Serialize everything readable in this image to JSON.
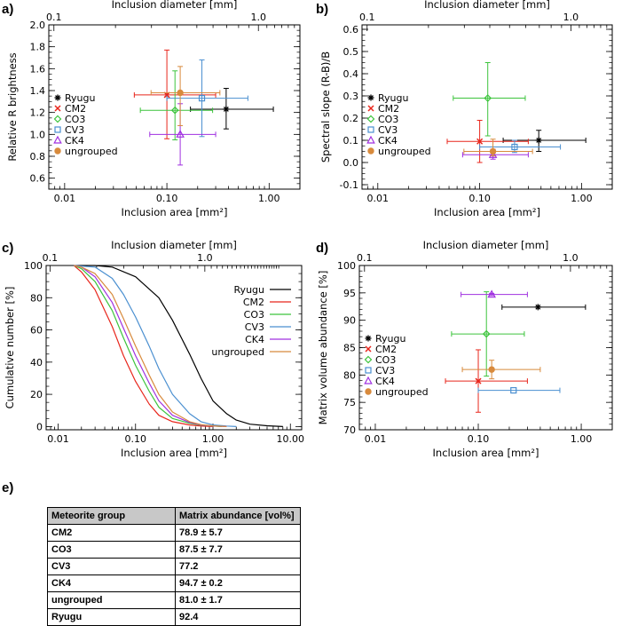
{
  "panel_labels": [
    "a)",
    "b)",
    "c)",
    "d)",
    "e)"
  ],
  "colors": {
    "Ryugu": "#000000",
    "CM2": "#e8261c",
    "CO3": "#3cc43c",
    "CV3": "#4a8fd0",
    "CK4": "#a030e0",
    "ungrouped": "#d88a3c"
  },
  "chart_data": [
    {
      "id": "a",
      "type": "scatter",
      "xscale": "log",
      "xlim": [
        0.007,
        2.0
      ],
      "ylim": [
        0.5,
        2.0
      ],
      "xlabel": "Inclusion area [mm²]",
      "ylabel": "Relative R brightness",
      "top_axis_label": "Inclusion diameter [mm]",
      "top_ticks": [
        "0.1",
        "1.0"
      ],
      "xticks": [
        "0.01",
        "0.10",
        "1.00"
      ],
      "yticks": [
        "0.6",
        "0.8",
        "1.0",
        "1.2",
        "1.4",
        "1.6",
        "1.8",
        "2.0"
      ],
      "legend": [
        "Ryugu",
        "CM2",
        "CO3",
        "CV3",
        "CK4",
        "ungrouped"
      ],
      "points": [
        {
          "name": "Ryugu",
          "marker": "star",
          "x": 0.38,
          "xerr": [
            0.17,
            1.1
          ],
          "y": 1.23,
          "yerr": [
            1.05,
            1.42
          ]
        },
        {
          "name": "CM2",
          "marker": "x",
          "x": 0.1,
          "xerr": [
            0.048,
            0.3
          ],
          "y": 1.36,
          "yerr": [
            0.96,
            1.77
          ]
        },
        {
          "name": "CO3",
          "marker": "diamond",
          "x": 0.12,
          "xerr": [
            0.055,
            0.28
          ],
          "y": 1.22,
          "yerr": [
            0.95,
            1.58
          ]
        },
        {
          "name": "CV3",
          "marker": "square",
          "x": 0.22,
          "xerr": [
            0.1,
            0.62
          ],
          "y": 1.33,
          "yerr": [
            0.98,
            1.68
          ]
        },
        {
          "name": "CK4",
          "marker": "triangle",
          "x": 0.135,
          "xerr": [
            0.068,
            0.3
          ],
          "y": 1.0,
          "yerr": [
            0.72,
            1.28
          ]
        },
        {
          "name": "ungrouped",
          "marker": "circle",
          "x": 0.135,
          "xerr": [
            0.07,
            0.33
          ],
          "y": 1.38,
          "yerr": [
            1.08,
            1.62
          ]
        }
      ]
    },
    {
      "id": "b",
      "type": "scatter",
      "xscale": "log",
      "xlim": [
        0.007,
        2.0
      ],
      "ylim": [
        -0.12,
        0.62
      ],
      "xlabel": "Inclusion area [mm²]",
      "ylabel": "Spectral slope (R-B)/B",
      "top_axis_label": "Inclusion diameter [mm]",
      "top_ticks": [
        "0.1",
        "1.0"
      ],
      "xticks": [
        "0.01",
        "0.10",
        "1.00"
      ],
      "yticks": [
        "-0.1",
        "0.0",
        "0.1",
        "0.2",
        "0.3",
        "0.4",
        "0.5",
        "0.6"
      ],
      "legend": [
        "Ryugu",
        "CM2",
        "CO3",
        "CV3",
        "CK4",
        "ungrouped"
      ],
      "points": [
        {
          "name": "Ryugu",
          "marker": "star",
          "x": 0.38,
          "xerr": [
            0.17,
            1.1
          ],
          "y": 0.1,
          "yerr": [
            0.05,
            0.145
          ]
        },
        {
          "name": "CM2",
          "marker": "x",
          "x": 0.1,
          "xerr": [
            0.048,
            0.3
          ],
          "y": 0.095,
          "yerr": [
            0.0,
            0.19
          ]
        },
        {
          "name": "CO3",
          "marker": "diamond",
          "x": 0.12,
          "xerr": [
            0.055,
            0.28
          ],
          "y": 0.29,
          "yerr": [
            0.12,
            0.45
          ]
        },
        {
          "name": "CV3",
          "marker": "square",
          "x": 0.22,
          "xerr": [
            0.1,
            0.62
          ],
          "y": 0.07,
          "yerr": [
            0.045,
            0.1
          ]
        },
        {
          "name": "CK4",
          "marker": "triangle",
          "x": 0.135,
          "xerr": [
            0.068,
            0.3
          ],
          "y": 0.035,
          "yerr": [
            0.015,
            0.06
          ]
        },
        {
          "name": "ungrouped",
          "marker": "circle",
          "x": 0.135,
          "xerr": [
            0.07,
            0.33
          ],
          "y": 0.05,
          "yerr": [
            0.03,
            0.105
          ]
        }
      ]
    },
    {
      "id": "c",
      "type": "line",
      "xscale": "log",
      "xlim": [
        0.007,
        14.0
      ],
      "ylim": [
        -2,
        100
      ],
      "xlabel": "Inclusion area [mm²]",
      "ylabel": "Cumulative number [%]",
      "top_axis_label": "Inclusion diameter [mm]",
      "top_ticks": [
        "0.1",
        "1.0"
      ],
      "xticks": [
        "0.01",
        "0.10",
        "1.00",
        "10.00"
      ],
      "yticks": [
        "0",
        "20",
        "40",
        "60",
        "80",
        "100"
      ],
      "legend": [
        "Ryugu",
        "CM2",
        "CO3",
        "CV3",
        "CK4",
        "ungrouped"
      ],
      "series": [
        {
          "name": "Ryugu",
          "x": [
            0.016,
            0.03,
            0.05,
            0.1,
            0.2,
            0.3,
            0.5,
            0.7,
            1.0,
            1.5,
            2.0,
            3.0,
            5.0,
            8.0
          ],
          "values": [
            100,
            100,
            99,
            93,
            80,
            66,
            45,
            30,
            16,
            8,
            4,
            1.5,
            0.5,
            0
          ]
        },
        {
          "name": "CM2",
          "x": [
            0.016,
            0.02,
            0.03,
            0.05,
            0.07,
            0.1,
            0.15,
            0.2,
            0.3,
            0.5,
            0.7,
            1.0
          ],
          "values": [
            100,
            96,
            85,
            62,
            44,
            28,
            14,
            7,
            3,
            1,
            0.3,
            0
          ]
        },
        {
          "name": "CO3",
          "x": [
            0.016,
            0.02,
            0.03,
            0.05,
            0.07,
            0.1,
            0.15,
            0.2,
            0.3,
            0.5,
            0.7,
            1.0,
            1.3
          ],
          "values": [
            100,
            98,
            90,
            72,
            55,
            38,
            22,
            12,
            5,
            2,
            0.8,
            0.3,
            0
          ]
        },
        {
          "name": "CV3",
          "x": [
            0.016,
            0.03,
            0.05,
            0.07,
            0.1,
            0.15,
            0.2,
            0.3,
            0.5,
            0.7,
            1.0,
            1.5,
            2.0
          ],
          "values": [
            100,
            99,
            92,
            82,
            68,
            50,
            36,
            20,
            8,
            3,
            1,
            0.3,
            0
          ]
        },
        {
          "name": "CK4",
          "x": [
            0.016,
            0.02,
            0.03,
            0.05,
            0.07,
            0.1,
            0.15,
            0.2,
            0.3,
            0.5,
            0.7,
            1.0,
            1.5
          ],
          "values": [
            100,
            99,
            93,
            77,
            61,
            44,
            27,
            16,
            7,
            2.5,
            1,
            0.3,
            0
          ]
        },
        {
          "name": "ungrouped",
          "x": [
            0.016,
            0.02,
            0.03,
            0.05,
            0.07,
            0.1,
            0.15,
            0.2,
            0.3,
            0.5,
            0.7,
            1.0,
            1.5
          ],
          "values": [
            100,
            99,
            95,
            82,
            67,
            50,
            32,
            20,
            9,
            3,
            1.2,
            0.4,
            0
          ]
        }
      ]
    },
    {
      "id": "d",
      "type": "scatter",
      "xscale": "log",
      "xlim": [
        0.007,
        2.0
      ],
      "ylim": [
        70,
        100
      ],
      "xlabel": "Inclusion area [mm²]",
      "ylabel": "Matrix volume abundance [%]",
      "top_axis_label": "Inclusion diameter [mm]",
      "top_ticks": [
        "0.1",
        "1.0"
      ],
      "xticks": [
        "0.01",
        "0.10",
        "1.00"
      ],
      "yticks": [
        "70",
        "75",
        "80",
        "85",
        "90",
        "95",
        "100"
      ],
      "legend": [
        "Ryugu",
        "CM2",
        "CO3",
        "CV3",
        "CK4",
        "ungrouped"
      ],
      "points": [
        {
          "name": "Ryugu",
          "marker": "star",
          "x": 0.38,
          "xerr": [
            0.17,
            1.1
          ],
          "y": 92.4,
          "yerr": [
            92.4,
            92.4
          ]
        },
        {
          "name": "CM2",
          "marker": "x",
          "x": 0.1,
          "xerr": [
            0.048,
            0.3
          ],
          "y": 78.9,
          "yerr": [
            73.2,
            84.6
          ]
        },
        {
          "name": "CO3",
          "marker": "diamond",
          "x": 0.12,
          "xerr": [
            0.055,
            0.28
          ],
          "y": 87.5,
          "yerr": [
            79.8,
            95.2
          ]
        },
        {
          "name": "CV3",
          "marker": "square",
          "x": 0.22,
          "xerr": [
            0.1,
            0.62
          ],
          "y": 77.2,
          "yerr": [
            77.2,
            77.2
          ]
        },
        {
          "name": "CK4",
          "marker": "triangle",
          "x": 0.135,
          "xerr": [
            0.068,
            0.3
          ],
          "y": 94.7,
          "yerr": [
            94.5,
            94.9
          ]
        },
        {
          "name": "ungrouped",
          "marker": "circle",
          "x": 0.135,
          "xerr": [
            0.07,
            0.4
          ],
          "y": 81.0,
          "yerr": [
            79.3,
            82.7
          ]
        }
      ]
    }
  ],
  "table": {
    "headers": [
      "Meteorite group",
      "Matrix abundance [vol%]"
    ],
    "rows": [
      [
        "CM2",
        "78.9 ± 5.7"
      ],
      [
        "CO3",
        "87.5 ± 7.7"
      ],
      [
        "CV3",
        "77.2"
      ],
      [
        "CK4",
        "94.7 ± 0.2"
      ],
      [
        "ungrouped",
        "81.0 ± 1.7"
      ],
      [
        "Ryugu",
        "92.4"
      ]
    ]
  }
}
